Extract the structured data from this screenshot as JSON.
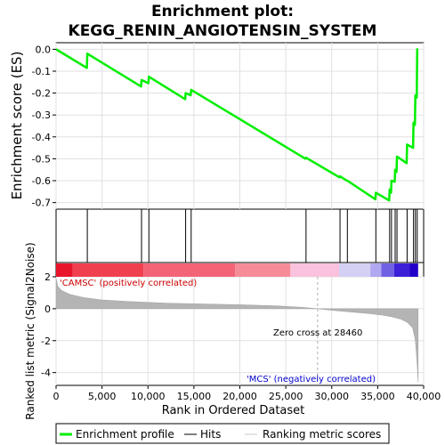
{
  "chart_data": {
    "type": "line",
    "title_line1": "Enrichment plot:",
    "title_line2": "KEGG_RENIN_ANGIOTENSIN_SYSTEM",
    "ylabel_top": "Enrichment score (ES)",
    "ylabel_bottom": "Ranked list metric (Signal2Noise)",
    "xlabel": "Rank in Ordered Dataset",
    "xlim": [
      0,
      40000
    ],
    "x_ticks": [
      0,
      5000,
      10000,
      15000,
      20000,
      25000,
      30000,
      35000,
      40000
    ],
    "x_tick_labels": [
      "0",
      "5,000",
      "10,000",
      "15,000",
      "20,000",
      "25,000",
      "30,000",
      "35,000",
      "40,000"
    ],
    "es_ylim": [
      -0.73,
      0.03
    ],
    "es_ticks": [
      0.0,
      -0.1,
      -0.2,
      -0.3,
      -0.4,
      -0.5,
      -0.6,
      -0.7
    ],
    "es_tick_labels": [
      "0.0",
      "-0.1",
      "-0.2",
      "-0.3",
      "-0.4",
      "-0.5",
      "-0.6",
      "-0.7"
    ],
    "metric_ylim": [
      -4.8,
      2.0
    ],
    "metric_ticks": [
      2,
      0,
      -2,
      -4
    ],
    "metric_tick_labels": [
      "2",
      "0",
      "-2",
      "-4"
    ],
    "hits": [
      3400,
      9300,
      10100,
      14100,
      14700,
      27200,
      30900,
      31700,
      34800,
      36300,
      36500,
      36900,
      37100,
      38200,
      38900,
      39100,
      39300
    ],
    "es_curve": {
      "x": [
        0,
        3350,
        3400,
        9250,
        9300,
        10050,
        10100,
        14050,
        14100,
        14650,
        14700,
        27150,
        27200,
        30850,
        30900,
        31650,
        31700,
        34750,
        34800,
        36250,
        36300,
        36450,
        36500,
        36850,
        36900,
        37050,
        37100,
        38150,
        38200,
        38850,
        38900,
        39050,
        39100,
        39250,
        39300,
        39400
      ],
      "y": [
        0.0,
        -0.085,
        -0.02,
        -0.17,
        -0.14,
        -0.155,
        -0.125,
        -0.228,
        -0.2,
        -0.21,
        -0.185,
        -0.5,
        -0.495,
        -0.585,
        -0.58,
        -0.6,
        -0.6,
        -0.685,
        -0.655,
        -0.69,
        -0.64,
        -0.655,
        -0.6,
        -0.605,
        -0.55,
        -0.56,
        -0.49,
        -0.52,
        -0.435,
        -0.45,
        -0.335,
        -0.345,
        -0.21,
        -0.22,
        0.0,
        0.0
      ]
    },
    "metric_curve": {
      "x": [
        0,
        200,
        600,
        1500,
        3000,
        5000,
        8000,
        12000,
        16000,
        20000,
        24000,
        27000,
        28460,
        30000,
        32000,
        34000,
        35500,
        36500,
        37500,
        38200,
        38800,
        39100,
        39300,
        39400
      ],
      "y": [
        1.9,
        1.4,
        1.15,
        0.9,
        0.7,
        0.55,
        0.45,
        0.35,
        0.3,
        0.25,
        0.18,
        0.08,
        0.0,
        -0.1,
        -0.2,
        -0.3,
        -0.4,
        -0.5,
        -0.65,
        -0.85,
        -1.2,
        -2.0,
        -3.5,
        -4.6
      ]
    },
    "zero_cross_x": 28460,
    "zero_cross_label": "Zero cross at 28460",
    "pos_label": "'CAMSC' (positively correlated)",
    "neg_label": "'MCS' (negatively correlated)",
    "legend": {
      "placement": "bottom",
      "items": [
        "Enrichment profile",
        "Hits",
        "Ranking metric scores"
      ]
    },
    "colors": {
      "es_line": "#00ee00",
      "hits": "#000000",
      "metric_fill": "#b4b4b4",
      "pos_label": "#cc0000",
      "neg_label": "#0000cc",
      "grid": "#e0e0e0"
    },
    "bar_segments": [
      {
        "x0": 0,
        "x1": 1800,
        "color": "#e8142c"
      },
      {
        "x0": 1800,
        "x1": 9500,
        "color": "#f04050"
      },
      {
        "x0": 9500,
        "x1": 19500,
        "color": "#f46478"
      },
      {
        "x0": 19500,
        "x1": 25500,
        "color": "#f68c98"
      },
      {
        "x0": 25500,
        "x1": 30800,
        "color": "#fac2dc"
      },
      {
        "x0": 30800,
        "x1": 34200,
        "color": "#d4d0f4"
      },
      {
        "x0": 34200,
        "x1": 35400,
        "color": "#b0a8f0"
      },
      {
        "x0": 35400,
        "x1": 36800,
        "color": "#7060e4"
      },
      {
        "x0": 36800,
        "x1": 38500,
        "color": "#3c20d8"
      },
      {
        "x0": 38500,
        "x1": 39400,
        "color": "#2400c8"
      }
    ]
  }
}
